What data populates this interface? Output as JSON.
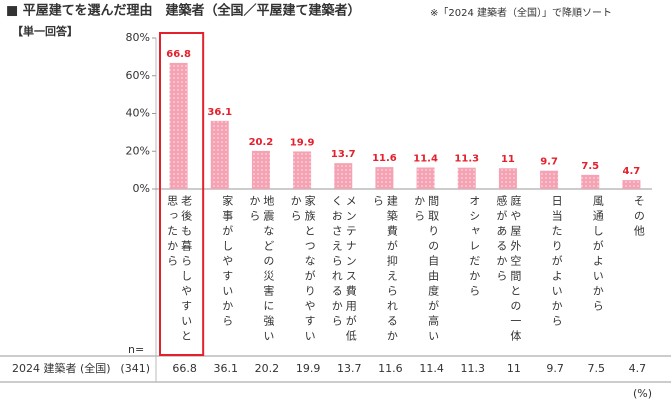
{
  "chart_data": {
    "type": "bar",
    "title": "■ 平屋建てを選んだ理由　建築者（全国／平屋建て建築者）",
    "note": "※「2024 建築者（全国）」で降順ソート",
    "subtitle": "【単一回答】",
    "categories": [
      "老後も暮らしやすいと思ったから",
      "家事がしやすいから",
      "地震などの災害に強いから",
      "家族とつながりやすいから",
      "メンテナンス費用が低くおさえられるから",
      "建築費が抑えられるから",
      "間取りの自由度が高いから",
      "オシャレだから",
      "庭や屋外空間との一体感があるから",
      "日当たりがよいから",
      "風通しがよいから",
      "その他"
    ],
    "series": [
      {
        "name": "2024 建築者 (全国)",
        "color": "#f5a3b4",
        "n": "(341)",
        "values": [
          66.8,
          36.1,
          20.2,
          19.9,
          13.7,
          11.6,
          11.4,
          11.3,
          11.0,
          9.7,
          7.5,
          4.7
        ]
      }
    ],
    "value_label_color": "#e3202c",
    "n_label": "n=",
    "unit_label": "(%)",
    "ylim": [
      0,
      80
    ],
    "yticks": [
      {
        "value": 0,
        "label": "0%"
      },
      {
        "value": 20,
        "label": "20%"
      },
      {
        "value": 40,
        "label": "40%"
      },
      {
        "value": 60,
        "label": "60%"
      },
      {
        "value": 80,
        "label": "80%"
      }
    ]
  }
}
